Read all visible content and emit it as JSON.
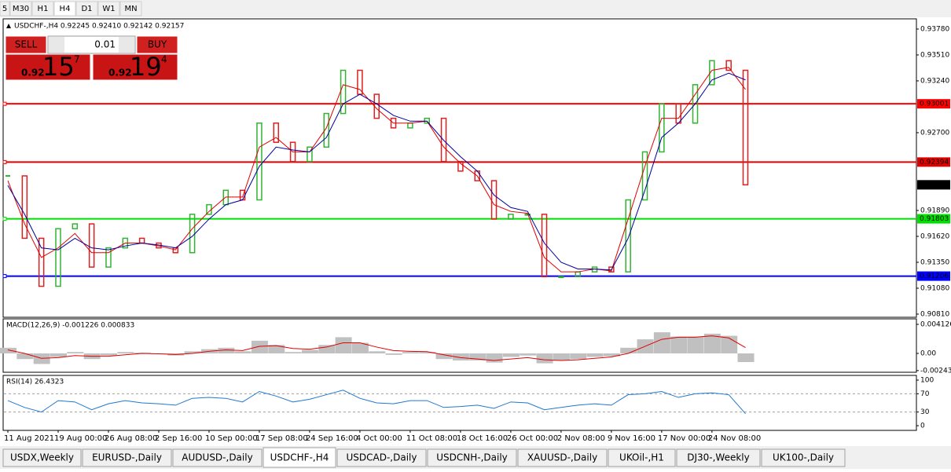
{
  "toolbar": [
    "5",
    "M30",
    "H1",
    "H4",
    "D1",
    "W1",
    "MN"
  ],
  "trade_panel": {
    "sell": "SELL",
    "lot": "0.01",
    "buy": "BUY",
    "bid": {
      "big": "0.92",
      "main": "15",
      "sup": "7"
    },
    "ask": {
      "big": "0.92",
      "main": "19",
      "sup": "4"
    }
  },
  "chart_data": [
    {
      "type": "candlestick",
      "title": "USDCHF-,H4  0.92245 0.92410 0.92142 0.92157",
      "categories": [
        "11 Aug 2021",
        null,
        null,
        "19 Aug 00:00",
        null,
        null,
        "26 Aug 08:00",
        null,
        null,
        "2 Sep 16:00",
        null,
        null,
        "10 Sep 00:00",
        null,
        null,
        "17 Sep 08:00",
        null,
        null,
        "24 Sep 16:00",
        null,
        null,
        "4 Oct 00:00",
        null,
        null,
        "11 Oct 08:00",
        null,
        null,
        "18 Oct 16:00",
        null,
        null,
        "26 Oct 00:00",
        null,
        null,
        "2 Nov 08:00",
        null,
        null,
        "9 Nov 16:00",
        null,
        null,
        "17 Nov 00:00",
        null,
        null,
        "24 Nov 08:00",
        null,
        null
      ],
      "values": [
        0.9225,
        0.916,
        0.911,
        0.917,
        0.9175,
        0.913,
        0.915,
        0.916,
        0.9155,
        0.915,
        0.9145,
        0.9185,
        0.9195,
        0.921,
        0.92,
        0.928,
        0.926,
        0.924,
        0.9255,
        0.929,
        0.9335,
        0.931,
        0.9285,
        0.9275,
        0.928,
        0.9285,
        0.924,
        0.923,
        0.922,
        0.918,
        0.9185,
        0.9185,
        0.912,
        0.912,
        0.9125,
        0.913,
        0.9125,
        0.92,
        0.925,
        0.93,
        0.928,
        0.932,
        0.9345,
        0.9335,
        0.92157
      ],
      "up_color": "#32b432",
      "down_color": "#e02020",
      "overlays": [
        {
          "color": "#e00000",
          "values": [
            0.922,
            0.9175,
            0.914,
            0.915,
            0.9165,
            0.9145,
            0.9145,
            0.9155,
            0.9155,
            0.9152,
            0.9148,
            0.917,
            0.9188,
            0.9203,
            0.9203,
            0.9255,
            0.9265,
            0.925,
            0.925,
            0.9275,
            0.932,
            0.9315,
            0.9295,
            0.928,
            0.928,
            0.9282,
            0.9255,
            0.9238,
            0.9225,
            0.9195,
            0.9188,
            0.9186,
            0.914,
            0.9125,
            0.9125,
            0.9128,
            0.9126,
            0.918,
            0.9235,
            0.9285,
            0.9285,
            0.931,
            0.9335,
            0.9338,
            0.9315
          ]
        },
        {
          "color": "#0000a0",
          "values": [
            0.9215,
            0.9185,
            0.915,
            0.9148,
            0.916,
            0.915,
            0.9148,
            0.9152,
            0.9155,
            0.9153,
            0.915,
            0.9162,
            0.918,
            0.9195,
            0.92,
            0.9235,
            0.9255,
            0.9252,
            0.925,
            0.9265,
            0.93,
            0.931,
            0.93,
            0.9288,
            0.9282,
            0.9282,
            0.9262,
            0.9245,
            0.923,
            0.9205,
            0.9192,
            0.9188,
            0.9155,
            0.9135,
            0.9128,
            0.9128,
            0.9127,
            0.916,
            0.921,
            0.9265,
            0.928,
            0.93,
            0.9325,
            0.9332,
            0.9325
          ]
        }
      ],
      "levels": [
        {
          "value": 0.93001,
          "color": "#ff0000"
        },
        {
          "value": 0.92394,
          "color": "#e00000"
        },
        {
          "value": 0.91803,
          "color": "#00e000"
        },
        {
          "value": 0.91206,
          "color": "#0000ff"
        }
      ],
      "last_price": 0.92157,
      "ylim": [
        0.90777,
        0.93886
      ],
      "yticks": [
        {
          "value": 0.9378,
          "label": "0.93780"
        },
        {
          "value": 0.9351,
          "label": "0.93510"
        },
        {
          "value": 0.9324,
          "label": "0.93240"
        },
        {
          "value": 0.927,
          "label": "0.92700"
        },
        {
          "value": 0.9189,
          "label": "0.91890"
        },
        {
          "value": 0.9162,
          "label": "0.91620"
        },
        {
          "value": 0.9135,
          "label": "0.91350"
        },
        {
          "value": 0.9108,
          "label": "0.91080"
        },
        {
          "value": 0.9081,
          "label": "0.90810"
        }
      ]
    },
    {
      "type": "macd",
      "title": "MACD(12,26,9) -0.001226 0.000833",
      "series": [
        {
          "color": "#c0c0c0",
          "values": [
            0.0008,
            -0.0008,
            -0.0015,
            -0.0005,
            0.0002,
            -0.0008,
            -0.0003,
            0.0002,
            0.0001,
            -0.0001,
            -0.0003,
            0.0003,
            0.0006,
            0.0008,
            0.0003,
            0.0018,
            0.0012,
            0.0002,
            0.0005,
            0.0012,
            0.0023,
            0.0015,
            0.0003,
            -0.0002,
            0.0002,
            0.0002,
            -0.0008,
            -0.001,
            -0.001,
            -0.0013,
            -0.0005,
            -0.0003,
            -0.0014,
            -0.001,
            -0.0008,
            -0.0005,
            -0.0004,
            0.0008,
            0.002,
            0.003,
            0.0024,
            0.0024,
            0.0028,
            0.0025,
            -0.001226
          ]
        },
        {
          "color": "#e00000",
          "values": [
            0.0005,
            0,
            -0.0007,
            -0.0006,
            -0.0003,
            -0.0004,
            -0.0004,
            -0.0002,
            0,
            -5e-05,
            -0.00015,
            0,
            0.0003,
            0.0005,
            0.0004,
            0.001,
            0.0011,
            0.0007,
            0.0006,
            0.0009,
            0.0015,
            0.0015,
            0.0009,
            0.0004,
            0.0003,
            0.00025,
            -0.0002,
            -0.0006,
            -0.0008,
            -0.001,
            -0.0008,
            -0.0006,
            -0.0009,
            -0.001,
            -0.0009,
            -0.0007,
            -0.0005,
            0,
            0.001,
            0.002,
            0.0023,
            0.0023,
            0.0025,
            0.0022,
            0.000833
          ]
        }
      ],
      "ylim": [
        -0.002676,
        0.004907
      ],
      "yticks": [
        0.004126,
        {
          "value": 0,
          "label": "0.00"
        },
        -0.002436
      ]
    },
    {
      "type": "line",
      "title": "RSI(14) 26.4323",
      "series": [
        {
          "color": "#1e78d2",
          "values": [
            55,
            40,
            30,
            55,
            52,
            35,
            48,
            55,
            50,
            48,
            45,
            60,
            62,
            60,
            52,
            75,
            65,
            52,
            58,
            68,
            78,
            60,
            50,
            48,
            55,
            55,
            40,
            42,
            45,
            38,
            52,
            50,
            35,
            40,
            45,
            48,
            45,
            68,
            70,
            75,
            62,
            70,
            72,
            68,
            26.4323
          ]
        }
      ],
      "levels": [
        70,
        30
      ],
      "ylim": [
        -10.3,
        110.3
      ],
      "yticks": [
        100,
        70,
        30,
        0
      ]
    }
  ],
  "tabs": [
    "USDX,Weekly",
    "EURUSD-,Daily",
    "AUDUSD-,Daily",
    "USDCHF-,H4",
    "USDCAD-,Daily",
    "USDCNH-,Daily",
    "XAUUSD-,Daily",
    "UKOil-,H1",
    "DJ30-,Weekly",
    "UK100-,Daily"
  ],
  "active_tab": 3
}
